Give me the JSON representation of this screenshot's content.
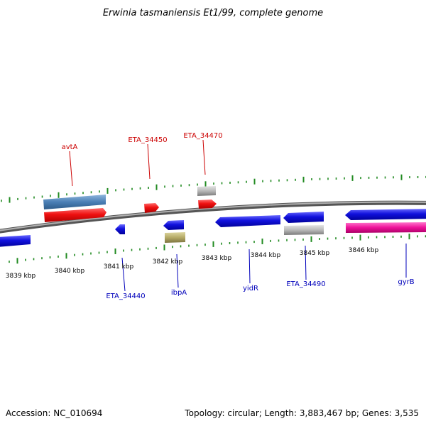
{
  "title": "Erwinia tasmaniensis Et1/99, complete genome",
  "footer": {
    "accession": "Accession: NC_010694",
    "summary": "Topology: circular; Length: 3,883,467 bp; Genes: 3,535"
  },
  "colors": {
    "backbone": "#8a8a8a",
    "ticks": "#228b22",
    "forward_label": "#cc0000",
    "reverse_label": "#0000bb",
    "red": "#ee1111",
    "blue": "#1111dd",
    "steelblue": "#4a7fb5",
    "grey": "#b8b8b8",
    "olive": "#b5aa66",
    "pink": "#ee1199"
  },
  "scale_labels": [
    "3839 kbp",
    "3840 kbp",
    "3841 kbp",
    "3842 kbp",
    "3843 kbp",
    "3844 kbp",
    "3845 kbp",
    "3846 kbp"
  ],
  "forward_labels": [
    "avtA",
    "ETA_34450",
    "ETA_34470"
  ],
  "reverse_labels": [
    "ETA_34440",
    "ibpA",
    "yidR",
    "ETA_34490",
    "gyrB"
  ]
}
